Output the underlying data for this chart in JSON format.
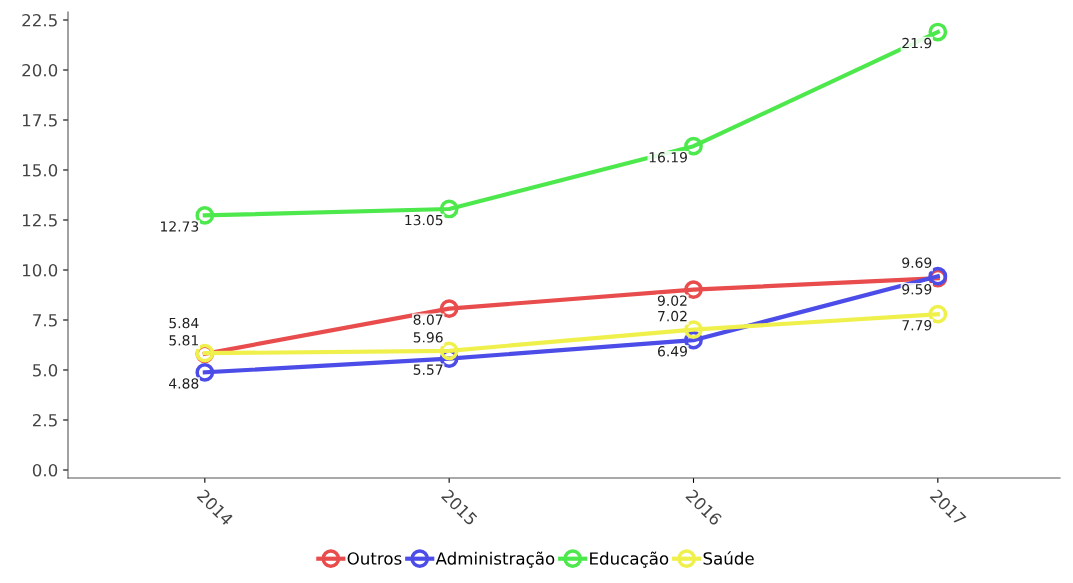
{
  "chart_data": {
    "type": "line",
    "categories": [
      "2014",
      "2015",
      "2016",
      "2017"
    ],
    "series": [
      {
        "name": "Outros",
        "color": "#e84c4c",
        "values": [
          5.81,
          8.07,
          9.02,
          9.59
        ]
      },
      {
        "name": "Administração",
        "color": "#4c4ce8",
        "values": [
          4.88,
          5.57,
          6.49,
          9.69
        ]
      },
      {
        "name": "Educação",
        "color": "#4ce84c",
        "values": [
          12.73,
          13.05,
          16.19,
          21.9
        ]
      },
      {
        "name": "Saúde",
        "color": "#f0f04c",
        "values": [
          5.84,
          5.96,
          7.02,
          7.79
        ]
      }
    ],
    "ylim": [
      -0.4,
      22.9
    ],
    "yticks": [
      {
        "value": 0,
        "label": "0.0"
      },
      2.5,
      {
        "value": 5,
        "label": "5.0"
      },
      7.5,
      {
        "value": 10,
        "label": "10.0"
      },
      12.5,
      {
        "value": 15,
        "label": "15.0"
      },
      17.5,
      {
        "value": 20,
        "label": "20.0"
      },
      22.5
    ],
    "data_labels": true,
    "marker": "circle",
    "line_style": "solid",
    "grid": false,
    "legend": "bottom"
  }
}
